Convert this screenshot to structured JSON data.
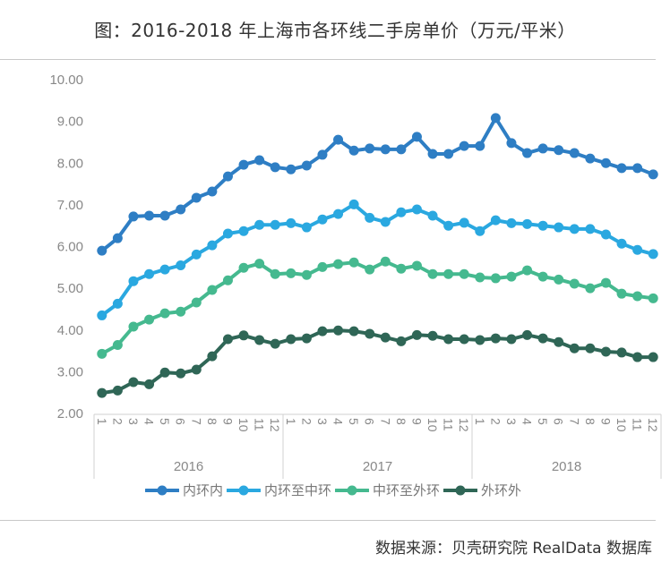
{
  "title": "图：2016-2018 年上海市各环线二手房单价（万元/平米）",
  "source": "数据来源：贝壳研究院 RealData 数据库",
  "chart_data": {
    "type": "line",
    "title": "图：2016-2018 年上海市各环线二手房单价（万元/平米）",
    "xlabel": "",
    "ylabel": "",
    "ylim": [
      2,
      10
    ],
    "yticks": [
      "2.00",
      "3.00",
      "4.00",
      "5.00",
      "6.00",
      "7.00",
      "8.00",
      "9.00",
      "10.00"
    ],
    "grid": false,
    "legend_position": "bottom",
    "years": [
      "2016",
      "2017",
      "2018"
    ],
    "month_labels": [
      "1",
      "2",
      "3",
      "4",
      "5",
      "6",
      "7",
      "8",
      "9",
      "10",
      "11",
      "12"
    ],
    "series": [
      {
        "name": "内环内",
        "color": "#2e7ec4",
        "values": [
          5.9,
          6.2,
          6.72,
          6.74,
          6.74,
          6.89,
          7.17,
          7.32,
          7.68,
          7.96,
          8.07,
          7.9,
          7.85,
          7.94,
          8.2,
          8.56,
          8.3,
          8.35,
          8.33,
          8.33,
          8.63,
          8.22,
          8.22,
          8.41,
          8.41,
          9.08,
          8.48,
          8.24,
          8.35,
          8.31,
          8.24,
          8.11,
          8.0,
          7.88,
          7.88,
          7.73
        ]
      },
      {
        "name": "内环至中环",
        "color": "#2aa8e0",
        "values": [
          4.35,
          4.63,
          5.17,
          5.34,
          5.45,
          5.55,
          5.81,
          6.03,
          6.31,
          6.37,
          6.52,
          6.52,
          6.56,
          6.46,
          6.65,
          6.78,
          7.01,
          6.69,
          6.59,
          6.82,
          6.89,
          6.74,
          6.5,
          6.57,
          6.37,
          6.63,
          6.56,
          6.54,
          6.5,
          6.46,
          6.42,
          6.42,
          6.29,
          6.07,
          5.92,
          5.82
        ]
      },
      {
        "name": "中环至外环",
        "color": "#45b98f",
        "values": [
          3.43,
          3.64,
          4.08,
          4.25,
          4.4,
          4.44,
          4.66,
          4.96,
          5.19,
          5.49,
          5.59,
          5.34,
          5.36,
          5.32,
          5.51,
          5.58,
          5.62,
          5.45,
          5.64,
          5.47,
          5.54,
          5.34,
          5.34,
          5.34,
          5.26,
          5.24,
          5.28,
          5.43,
          5.28,
          5.21,
          5.11,
          5.0,
          5.13,
          4.87,
          4.81,
          4.76
        ]
      },
      {
        "name": "外环外",
        "color": "#2f6656",
        "values": [
          2.49,
          2.55,
          2.75,
          2.7,
          2.98,
          2.96,
          3.05,
          3.37,
          3.78,
          3.87,
          3.76,
          3.67,
          3.78,
          3.8,
          3.97,
          3.99,
          3.97,
          3.91,
          3.82,
          3.73,
          3.88,
          3.86,
          3.78,
          3.78,
          3.76,
          3.8,
          3.78,
          3.88,
          3.8,
          3.71,
          3.56,
          3.56,
          3.48,
          3.46,
          3.35,
          3.35
        ]
      }
    ]
  }
}
